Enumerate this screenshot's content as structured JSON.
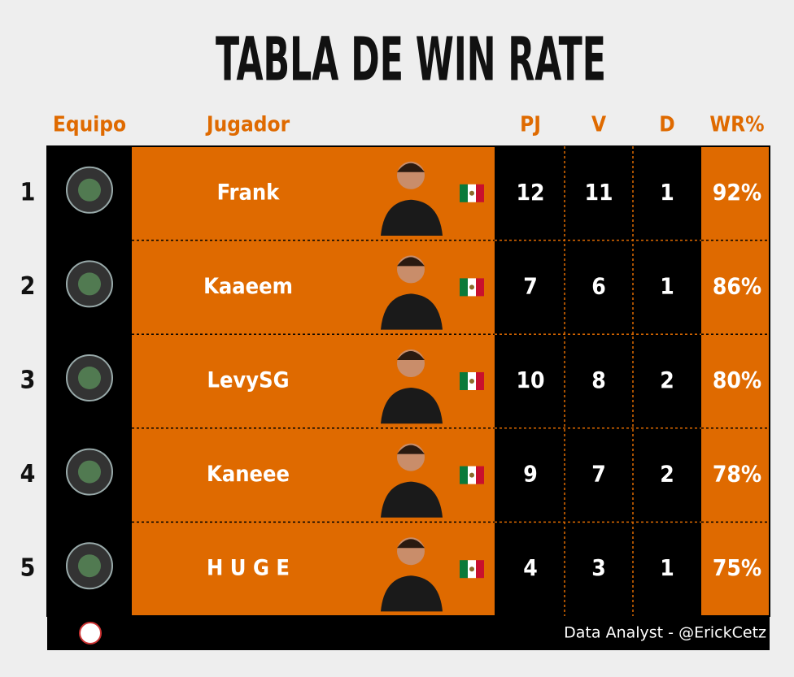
{
  "header": {
    "title": "TABLA DE WIN RATE",
    "columns": [
      "Equipo",
      "Jugador",
      "PJ",
      "V",
      "D",
      "WR%"
    ]
  },
  "table": {
    "rows": [
      [
        "1",
        "Frank",
        "12",
        "11",
        "1",
        "92%"
      ],
      [
        "2",
        "Kaaeem",
        "7",
        "6",
        "1",
        "86%"
      ],
      [
        "3",
        "LevySG",
        "10",
        "8",
        "2",
        "80%"
      ],
      [
        "4",
        "Kaneee",
        "9",
        "7",
        "2",
        "78%"
      ],
      [
        "5",
        "H U G E",
        "4",
        "3",
        "1",
        "75%"
      ]
    ]
  },
  "footer": {
    "credit": "Data Analyst  -  @ErickCetz"
  }
}
